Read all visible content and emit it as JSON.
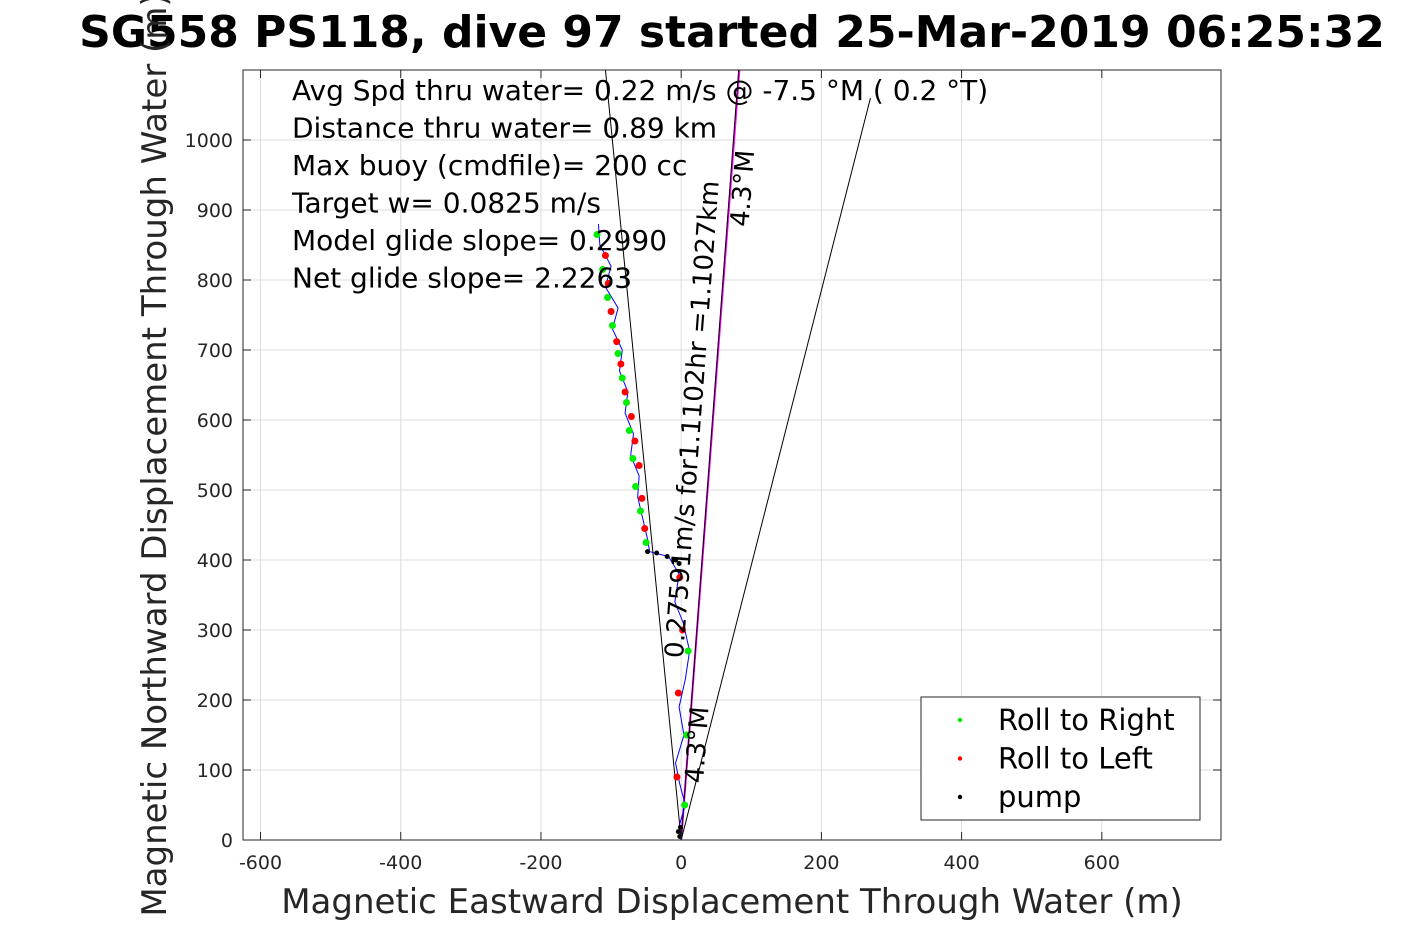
{
  "chart_data": {
    "type": "scatter",
    "title": "SG558 PS118, dive 97 started 25-Mar-2019 06:25:32",
    "xlabel": "Magnetic Eastward Displacement Through Water (m)",
    "ylabel": "Magnetic Northward Displacement Through Water (m)",
    "xlim": [
      -625,
      770
    ],
    "ylim": [
      0,
      1100
    ],
    "xticks": [
      -600,
      -400,
      -200,
      0,
      200,
      400,
      600
    ],
    "yticks": [
      0,
      100,
      200,
      300,
      400,
      500,
      600,
      700,
      800,
      900,
      1000
    ],
    "grid": true,
    "legend_position": "bottom-right",
    "info_lines": [
      "Avg Spd thru water=  0.22 m/s @  -7.5 °M (  0.2 °T)",
      "Distance thru water=  0.89 km",
      "Max buoy (cmdfile)= 200 cc",
      "Target w= 0.0825 m/s",
      "Model glide slope= 0.2990",
      "Net glide slope= 2.2263"
    ],
    "line_labels": [
      {
        "text": "0.27591m/s for1.1102hr =1.1027km",
        "x": 28,
        "y": 600
      },
      {
        "text": "4.3°M",
        "x": 100,
        "y": 930
      },
      {
        "text": "4.3°M",
        "x": 35,
        "y": 135
      }
    ],
    "reference_lines": [
      {
        "name": "heading-line",
        "color": "#ff00ff",
        "points": [
          [
            0,
            0
          ],
          [
            83,
            1100
          ]
        ]
      },
      {
        "name": "cone-left",
        "color": "#000000",
        "points": [
          [
            0,
            0
          ],
          [
            -108,
            1100
          ]
        ]
      },
      {
        "name": "cone-mid",
        "color": "#000000",
        "points": [
          [
            0,
            0
          ],
          [
            270,
            1060
          ]
        ]
      },
      {
        "name": "cone-right",
        "color": "#000000",
        "points": [
          [
            0,
            0
          ],
          [
            82,
            1100
          ]
        ]
      }
    ],
    "track": {
      "name": "track",
      "color": "#0000ff",
      "points": [
        [
          0,
          0
        ],
        [
          -3,
          20
        ],
        [
          6,
          50
        ],
        [
          -2,
          80
        ],
        [
          -8,
          110
        ],
        [
          4,
          150
        ],
        [
          -3,
          190
        ],
        [
          6,
          230
        ],
        [
          12,
          270
        ],
        [
          3,
          310
        ],
        [
          -9,
          340
        ],
        [
          -3,
          380
        ],
        [
          -18,
          405
        ],
        [
          -45,
          412
        ],
        [
          -48,
          430
        ],
        [
          -55,
          460
        ],
        [
          -62,
          490
        ],
        [
          -60,
          520
        ],
        [
          -72,
          550
        ],
        [
          -68,
          580
        ],
        [
          -80,
          610
        ],
        [
          -76,
          640
        ],
        [
          -88,
          670
        ],
        [
          -84,
          700
        ],
        [
          -98,
          730
        ],
        [
          -90,
          760
        ],
        [
          -108,
          790
        ],
        [
          -100,
          820
        ],
        [
          -116,
          850
        ],
        [
          -118,
          880
        ]
      ]
    },
    "series": [
      {
        "name": "Roll to Right",
        "color": "#00ee00",
        "points": [
          [
            5,
            50
          ],
          [
            8,
            150
          ],
          [
            10,
            270
          ],
          [
            -50,
            425
          ],
          [
            -58,
            470
          ],
          [
            -65,
            505
          ],
          [
            -69,
            545
          ],
          [
            -74,
            585
          ],
          [
            -78,
            625
          ],
          [
            -84,
            660
          ],
          [
            -90,
            695
          ],
          [
            -98,
            735
          ],
          [
            -105,
            775
          ],
          [
            -112,
            815
          ],
          [
            -120,
            865
          ]
        ]
      },
      {
        "name": "Roll to Left",
        "color": "#ff0000",
        "points": [
          [
            -6,
            90
          ],
          [
            -4,
            210
          ],
          [
            2,
            300
          ],
          [
            -2,
            375
          ],
          [
            -52,
            445
          ],
          [
            -56,
            488
          ],
          [
            -60,
            535
          ],
          [
            -66,
            570
          ],
          [
            -71,
            605
          ],
          [
            -80,
            640
          ],
          [
            -86,
            680
          ],
          [
            -92,
            712
          ],
          [
            -100,
            755
          ],
          [
            -104,
            795
          ],
          [
            -108,
            835
          ]
        ]
      },
      {
        "name": "pump",
        "color": "#000000",
        "points": [
          [
            -2,
            5
          ],
          [
            -4,
            12
          ],
          [
            -1,
            18
          ],
          [
            -20,
            405
          ],
          [
            -35,
            410
          ],
          [
            -48,
            412
          ],
          [
            -8,
            400
          ],
          [
            -3,
            395
          ]
        ]
      }
    ]
  }
}
